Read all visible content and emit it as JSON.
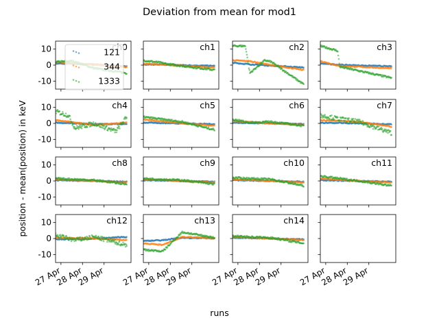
{
  "figure": {
    "title": "Deviation from mean for mod1",
    "xlabel": "runs",
    "ylabel": "position - mean(position) in keV"
  },
  "chart_data": {
    "type": "scatter",
    "title": "Deviation from mean for mod1",
    "xlabel": "runs",
    "ylabel": "position - mean(position) in keV",
    "ylim": [
      -15,
      15
    ],
    "yticks": [
      -10,
      0,
      10
    ],
    "x_range": [
      "2023-04-26 18:00",
      "2023-04-30 06:00"
    ],
    "xticks": [
      "27 Apr",
      "28 Apr",
      "29 Apr"
    ],
    "legend": {
      "location": "inside ch0, upper left",
      "entries": [
        "121",
        "344",
        "1333"
      ]
    },
    "series_colors": {
      "121": "#1f77b4",
      "344": "#ff7f0e",
      "1333": "#2ca02c"
    },
    "grid": false,
    "panels": [
      {
        "label": "ch0",
        "121": [
          [
            0.0,
            1.0
          ],
          [
            1.8,
            0.5
          ],
          [
            3.3,
            -0.8
          ]
        ],
        "344": [
          [
            0.0,
            1.8
          ],
          [
            1.8,
            0.3
          ],
          [
            3.3,
            -1.5
          ]
        ],
        "1333": [
          [
            0.0,
            2.0
          ],
          [
            0.8,
            2.5
          ],
          [
            1.8,
            -2.0
          ],
          [
            3.3,
            -5.0
          ]
        ]
      },
      {
        "label": "ch1",
        "121": [
          [
            0.0,
            0.5
          ],
          [
            0.9,
            0.3
          ],
          [
            3.3,
            -0.5
          ]
        ],
        "344": [
          [
            0.0,
            0.8
          ],
          [
            0.9,
            0.3
          ],
          [
            3.3,
            -1.5
          ]
        ],
        "1333": [
          [
            0.0,
            3.0
          ],
          [
            0.8,
            1.5
          ],
          [
            1.2,
            0.5
          ],
          [
            3.3,
            -3.0
          ]
        ]
      },
      {
        "label": "ch2",
        "121": [
          [
            0.0,
            1.5
          ],
          [
            0.8,
            0.5
          ],
          [
            3.3,
            -1.5
          ]
        ],
        "344": [
          [
            0.0,
            3.0
          ],
          [
            0.8,
            2.5
          ],
          [
            1.8,
            0.0
          ],
          [
            3.3,
            -3.0
          ]
        ],
        "1333": [
          [
            0.0,
            12.0
          ],
          [
            0.6,
            12.0
          ],
          [
            0.8,
            -5.0
          ],
          [
            1.5,
            3.0
          ],
          [
            1.8,
            2.0
          ],
          [
            3.3,
            -12.0
          ]
        ]
      },
      {
        "label": "ch3",
        "121": [
          [
            0.0,
            1.0
          ],
          [
            0.9,
            0.2
          ],
          [
            3.3,
            -0.8
          ]
        ],
        "344": [
          [
            0.0,
            2.5
          ],
          [
            0.9,
            -0.5
          ],
          [
            3.3,
            -2.0
          ]
        ],
        "1333": [
          [
            0.0,
            12.0
          ],
          [
            0.8,
            9.0
          ],
          [
            0.9,
            -1.0
          ],
          [
            3.3,
            -8.0
          ]
        ]
      },
      {
        "label": "ch4",
        "121": [
          [
            0.0,
            0.5
          ],
          [
            1.8,
            -0.5
          ],
          [
            3.3,
            -0.3
          ]
        ],
        "344": [
          [
            0.0,
            2.0
          ],
          [
            1.8,
            -1.0
          ],
          [
            3.3,
            0.5
          ]
        ],
        "1333": [
          [
            0.0,
            7.5
          ],
          [
            0.6,
            5.0
          ],
          [
            0.9,
            -3.0
          ],
          [
            1.8,
            0.0
          ],
          [
            2.8,
            -5.0
          ],
          [
            3.3,
            4.0
          ]
        ]
      },
      {
        "label": "ch5",
        "121": [
          [
            0.0,
            0.5
          ],
          [
            1.8,
            0.0
          ],
          [
            3.3,
            -0.5
          ]
        ],
        "344": [
          [
            0.0,
            2.5
          ],
          [
            1.8,
            0.0
          ],
          [
            3.3,
            -1.5
          ]
        ],
        "1333": [
          [
            0.0,
            4.0
          ],
          [
            1.8,
            1.0
          ],
          [
            3.3,
            -4.0
          ]
        ]
      },
      {
        "label": "ch6",
        "121": [
          [
            0.0,
            0.5
          ],
          [
            1.8,
            0.0
          ],
          [
            3.3,
            -0.5
          ]
        ],
        "344": [
          [
            0.0,
            1.5
          ],
          [
            1.8,
            0.0
          ],
          [
            3.3,
            -1.0
          ]
        ],
        "1333": [
          [
            0.0,
            2.5
          ],
          [
            0.8,
            0.5
          ],
          [
            1.8,
            1.0
          ],
          [
            3.3,
            -1.5
          ]
        ]
      },
      {
        "label": "ch7",
        "121": [
          [
            0.0,
            0.5
          ],
          [
            1.8,
            0.0
          ],
          [
            3.3,
            -0.5
          ]
        ],
        "344": [
          [
            0.0,
            2.0
          ],
          [
            1.8,
            1.0
          ],
          [
            3.3,
            -2.0
          ]
        ],
        "1333": [
          [
            0.0,
            5.0
          ],
          [
            0.8,
            3.0
          ],
          [
            1.8,
            1.0
          ],
          [
            3.3,
            -6.0
          ]
        ]
      },
      {
        "label": "ch8",
        "121": [
          [
            0.0,
            0.5
          ],
          [
            1.8,
            0.0
          ],
          [
            3.3,
            -0.5
          ]
        ],
        "344": [
          [
            0.0,
            1.0
          ],
          [
            1.8,
            0.0
          ],
          [
            3.3,
            -1.0
          ]
        ],
        "1333": [
          [
            0.0,
            1.5
          ],
          [
            1.8,
            0.5
          ],
          [
            3.3,
            -2.0
          ]
        ]
      },
      {
        "label": "ch9",
        "121": [
          [
            0.0,
            0.5
          ],
          [
            1.8,
            0.0
          ],
          [
            3.3,
            -0.5
          ]
        ],
        "344": [
          [
            0.0,
            1.0
          ],
          [
            1.8,
            0.0
          ],
          [
            3.3,
            -1.0
          ]
        ],
        "1333": [
          [
            0.0,
            1.5
          ],
          [
            1.8,
            0.5
          ],
          [
            3.3,
            -2.0
          ]
        ]
      },
      {
        "label": "ch10",
        "121": [
          [
            0.0,
            0.5
          ],
          [
            1.8,
            0.0
          ],
          [
            3.3,
            -0.5
          ]
        ],
        "344": [
          [
            0.0,
            1.0
          ],
          [
            1.8,
            0.0
          ],
          [
            3.3,
            -1.0
          ]
        ],
        "1333": [
          [
            0.0,
            2.0
          ],
          [
            1.8,
            1.0
          ],
          [
            3.3,
            -3.0
          ]
        ]
      },
      {
        "label": "ch11",
        "121": [
          [
            0.0,
            0.5
          ],
          [
            1.8,
            0.0
          ],
          [
            3.3,
            -0.5
          ]
        ],
        "344": [
          [
            0.0,
            1.5
          ],
          [
            1.8,
            0.0
          ],
          [
            3.3,
            -1.0
          ]
        ],
        "1333": [
          [
            0.0,
            3.0
          ],
          [
            1.8,
            0.0
          ],
          [
            3.3,
            -3.0
          ]
        ]
      },
      {
        "label": "ch12",
        "121": [
          [
            0.0,
            -0.5
          ],
          [
            1.8,
            0.0
          ],
          [
            3.3,
            1.0
          ]
        ],
        "344": [
          [
            0.0,
            0.5
          ],
          [
            1.8,
            0.0
          ],
          [
            3.3,
            -1.0
          ]
        ],
        "1333": [
          [
            0.0,
            2.0
          ],
          [
            0.9,
            -1.0
          ],
          [
            1.8,
            1.0
          ],
          [
            3.3,
            -4.0
          ]
        ]
      },
      {
        "label": "ch13",
        "121": [
          [
            0.0,
            -1.5
          ],
          [
            0.9,
            -1.0
          ],
          [
            1.8,
            0.5
          ],
          [
            3.3,
            0.2
          ]
        ],
        "344": [
          [
            0.0,
            -3.0
          ],
          [
            0.9,
            -4.0
          ],
          [
            1.8,
            1.0
          ],
          [
            3.3,
            0.2
          ]
        ],
        "1333": [
          [
            0.0,
            -7.0
          ],
          [
            0.9,
            -8.0
          ],
          [
            1.8,
            4.0
          ],
          [
            3.3,
            0.5
          ]
        ]
      },
      {
        "label": "ch14",
        "121": [
          [
            0.0,
            0.5
          ],
          [
            1.8,
            0.0
          ],
          [
            3.3,
            -0.5
          ]
        ],
        "344": [
          [
            0.0,
            1.0
          ],
          [
            1.8,
            0.0
          ],
          [
            3.3,
            -1.0
          ]
        ],
        "1333": [
          [
            0.0,
            1.5
          ],
          [
            1.8,
            0.5
          ],
          [
            3.3,
            -3.0
          ]
        ]
      },
      {
        "label": "",
        "121": [],
        "344": [],
        "1333": []
      }
    ]
  }
}
